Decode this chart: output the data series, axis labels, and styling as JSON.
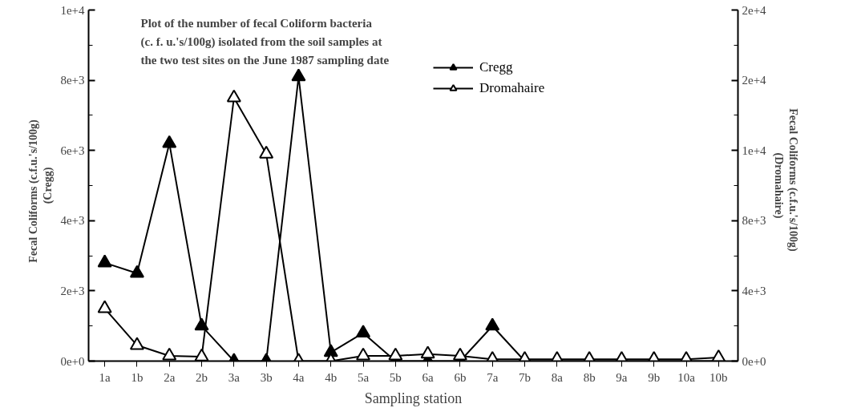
{
  "chart_data": {
    "type": "line",
    "title": "Plot of the number of fecal Coliform bacteria\n(c. f. u.'s/100g) isolated from the soil samples at\nthe two test sites on the June 1987 sampling date",
    "xlabel": "Sampling station",
    "ylabel": "Fecal   Coliforms   (c.f.u.'s/100g)\n(Cregg)",
    "y2label": "Fecal   Coliforms   (c.f.u.'s/100g)\n(Dromahaire)",
    "categories": [
      "1a",
      "1b",
      "2a",
      "2b",
      "3a",
      "3b",
      "4a",
      "4b",
      "5a",
      "5b",
      "6a",
      "6b",
      "7a",
      "7b",
      "8a",
      "8b",
      "9a",
      "9b",
      "10a",
      "10b"
    ],
    "series": [
      {
        "name": "Cregg",
        "color": "#000000",
        "marker": "triangle",
        "values": [
          2800,
          2500,
          6200,
          1000,
          0,
          0,
          8100,
          250,
          800,
          0,
          0,
          0,
          1000,
          0,
          0,
          0,
          0,
          0,
          0,
          0
        ]
      },
      {
        "name": "Dromahaire",
        "color": "#000000",
        "marker": "triangle_open",
        "axis": "y2",
        "values": [
          3000,
          900,
          300,
          250,
          15000,
          11800,
          0,
          0,
          300,
          300,
          400,
          300,
          100,
          100,
          100,
          100,
          100,
          100,
          100,
          200
        ]
      }
    ],
    "ylim": [
      0,
      10000
    ],
    "yticks": [
      {
        "value": 0,
        "label": "0e+0"
      },
      {
        "value": 1000,
        "label": null
      },
      {
        "value": 2000,
        "label": "2e+3"
      },
      {
        "value": 3000,
        "label": null
      },
      {
        "value": 4000,
        "label": "4e+3"
      },
      {
        "value": 5000,
        "label": null
      },
      {
        "value": 6000,
        "label": "6e+3"
      },
      {
        "value": 7000,
        "label": null
      },
      {
        "value": 8000,
        "label": "8e+3"
      },
      {
        "value": 9000,
        "label": null
      },
      {
        "value": 10000,
        "label": "1e+4"
      }
    ],
    "y2lim": [
      0,
      20000
    ],
    "y2ticks": [
      {
        "value": 0,
        "label": "0e+0"
      },
      {
        "value": 2000,
        "label": null
      },
      {
        "value": 4000,
        "label": "4e+3"
      },
      {
        "value": 6000,
        "label": null
      },
      {
        "value": 8000,
        "label": "8e+3"
      },
      {
        "value": 10000,
        "label": null
      },
      {
        "value": 12000,
        "label": "1e+4"
      },
      {
        "value": 14000,
        "label": null
      },
      {
        "value": 16000,
        "label": "2e+4"
      },
      {
        "value": 18000,
        "label": null
      },
      {
        "value": 20000,
        "label": "2e+4"
      }
    ],
    "legend": "top right",
    "grid": false
  }
}
